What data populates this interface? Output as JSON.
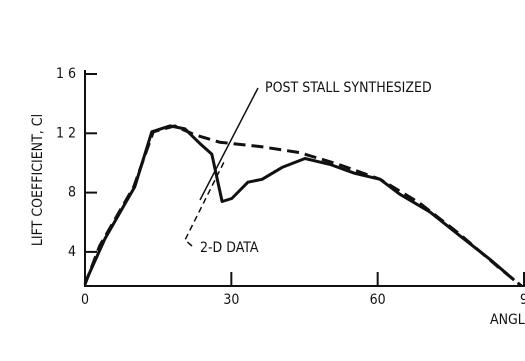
{
  "chart_data": {
    "type": "line",
    "y_label": "LIFT COEFFICIENT, Cl",
    "x_label": "ANGL",
    "xlim": [
      0,
      90
    ],
    "ylim": [
      0.17,
      1.6
    ],
    "xticks": [
      0,
      30,
      60,
      {
        "value": 90,
        "label": "9"
      }
    ],
    "yticks": [
      {
        "value": 0.4,
        "label": "4"
      },
      {
        "value": 0.8,
        "label": "8"
      },
      {
        "value": 1.2,
        "label": "1 2"
      },
      {
        "value": 1.6,
        "label": "1 6"
      }
    ],
    "series": [
      {
        "name": "2-D DATA",
        "color": "#111111",
        "dash": false,
        "x": [
          0,
          4.1,
          10.2,
          13.7,
          17.4,
          20.5,
          23.6,
          26,
          28.1,
          30.1,
          33.4,
          36.3,
          40.4,
          45.1,
          50.2,
          55.3,
          60.5,
          64.5,
          70.7,
          76.8,
          83,
          88
        ],
        "values": [
          0.19,
          0.49,
          0.84,
          1.21,
          1.25,
          1.23,
          1.13,
          1.06,
          0.74,
          0.76,
          0.87,
          0.89,
          0.97,
          1.03,
          0.99,
          0.93,
          0.89,
          0.79,
          0.67,
          0.51,
          0.35,
          0.21
        ]
      },
      {
        "name": "POST STALL SYNTHESIZED",
        "color": "#111111",
        "dash": true,
        "x": [
          0,
          3,
          10,
          14,
          18.4,
          22.5,
          27.6,
          36,
          44,
          52,
          60.5,
          68.6,
          76.8,
          85,
          89.5
        ],
        "values": [
          0.18,
          0.44,
          0.84,
          1.21,
          1.25,
          1.19,
          1.14,
          1.11,
          1.07,
          0.99,
          0.89,
          0.73,
          0.52,
          0.29,
          0.17
        ]
      }
    ]
  }
}
